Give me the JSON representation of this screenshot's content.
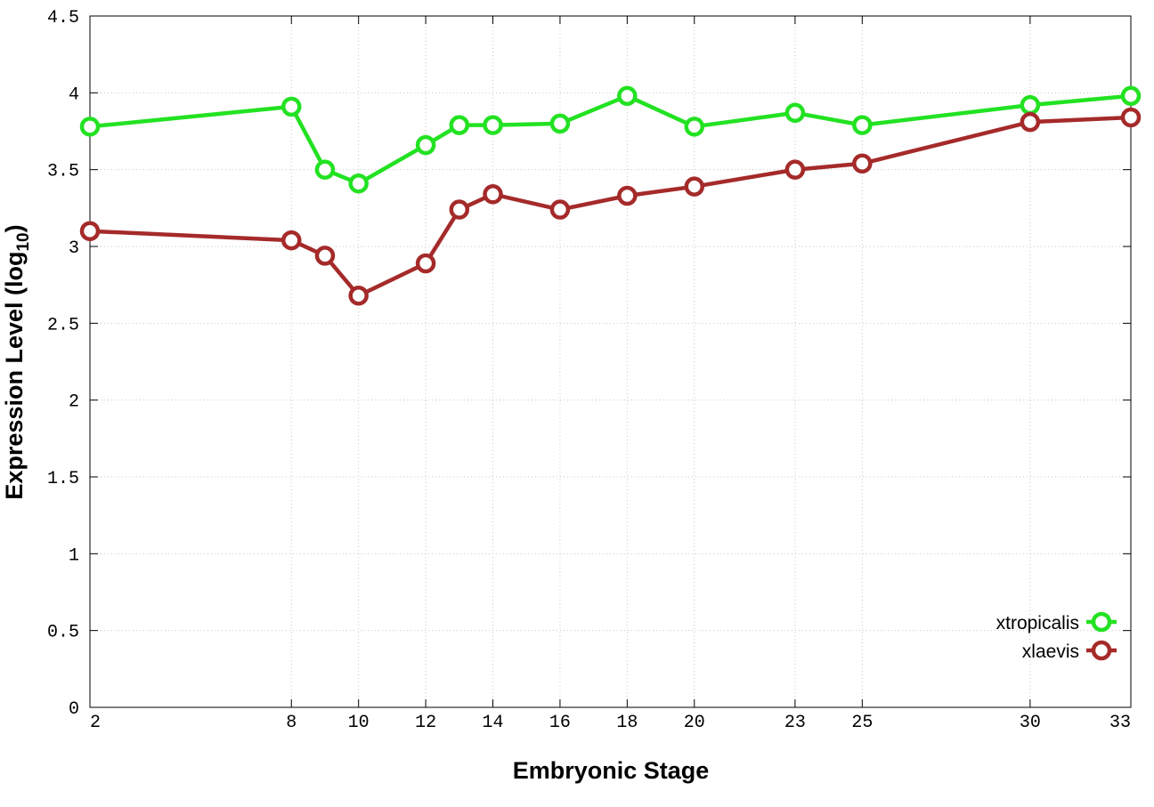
{
  "chart_data": {
    "type": "line",
    "title": "",
    "xlabel": "Embryonic Stage",
    "ylabel_main": "Expression Level (log",
    "ylabel_sub": "10",
    "ylabel_close": ")",
    "x": [
      2,
      8,
      9,
      10,
      12,
      13,
      14,
      16,
      18,
      20,
      23,
      25,
      30,
      33
    ],
    "x_ticks": [
      2,
      8,
      10,
      12,
      14,
      16,
      18,
      20,
      23,
      25,
      30,
      33
    ],
    "y_ticks": [
      "0",
      "0.5",
      "1",
      "1.5",
      "2",
      "2.5",
      "3",
      "3.5",
      "4",
      "4.5"
    ],
    "xlim": [
      2,
      33
    ],
    "ylim": [
      0,
      4.5
    ],
    "grid": true,
    "legend_position": "bottom-right",
    "series": [
      {
        "name": "xtropicalis",
        "color": "#22e222",
        "values": [
          3.78,
          3.91,
          3.5,
          3.41,
          3.66,
          3.79,
          3.79,
          3.8,
          3.98,
          3.78,
          3.87,
          3.79,
          3.92,
          3.98
        ]
      },
      {
        "name": "xlaevis",
        "color": "#a52a2a",
        "values": [
          3.1,
          3.04,
          2.94,
          2.68,
          2.89,
          3.24,
          3.34,
          3.24,
          3.33,
          3.39,
          3.5,
          3.54,
          3.81,
          3.84
        ]
      }
    ]
  }
}
